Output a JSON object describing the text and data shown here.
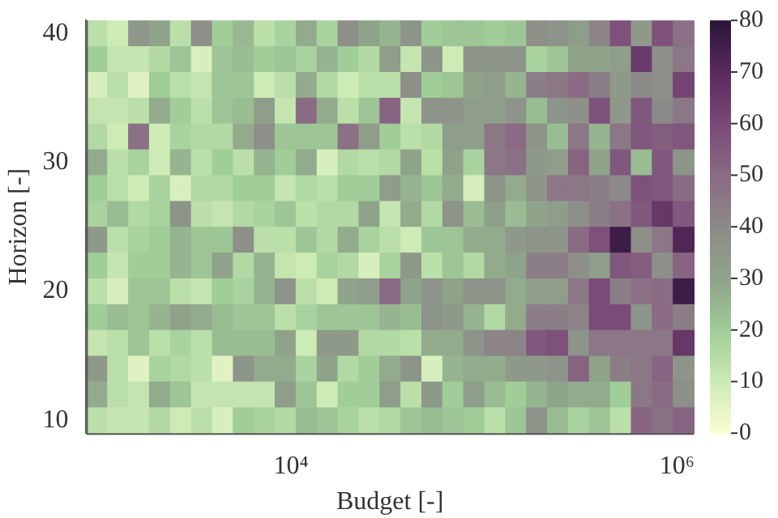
{
  "chart_data": {
    "type": "heatmap",
    "xlabel": "Budget [-]",
    "ylabel": "Horizon [-]",
    "log": "x",
    "xlim": [
      870,
      1220000
    ],
    "xticks": [
      {
        "value": 10000,
        "label": "10⁴"
      },
      {
        "value": 1000000,
        "label": "10⁶"
      }
    ],
    "ylim": [
      9,
      41
    ],
    "yticks": [
      10,
      20,
      30,
      40
    ],
    "clim": [
      0,
      80
    ],
    "cticks": [
      0,
      10,
      20,
      30,
      40,
      50,
      60,
      70,
      80
    ],
    "grid": false,
    "cells": [
      [
        14,
        10,
        35,
        30,
        14,
        38,
        20,
        25,
        14,
        18,
        28,
        18,
        38,
        30,
        26,
        36,
        20,
        22,
        22,
        20,
        22,
        38,
        36,
        32,
        42,
        58,
        34,
        58,
        48
      ],
      [
        20,
        12,
        12,
        16,
        22,
        8,
        22,
        24,
        20,
        22,
        18,
        26,
        20,
        16,
        32,
        12,
        36,
        10,
        36,
        36,
        36,
        18,
        22,
        30,
        30,
        32,
        65,
        38,
        46
      ],
      [
        8,
        14,
        6,
        20,
        14,
        12,
        22,
        22,
        10,
        14,
        28,
        16,
        10,
        14,
        14,
        38,
        20,
        22,
        30,
        32,
        26,
        44,
        46,
        50,
        44,
        34,
        40,
        38,
        62
      ],
      [
        12,
        12,
        14,
        28,
        20,
        14,
        22,
        24,
        32,
        12,
        50,
        28,
        14,
        22,
        52,
        12,
        36,
        36,
        32,
        32,
        36,
        24,
        36,
        38,
        58,
        34,
        56,
        40,
        46
      ],
      [
        16,
        10,
        48,
        10,
        18,
        16,
        16,
        28,
        38,
        22,
        22,
        22,
        48,
        32,
        20,
        14,
        16,
        32,
        32,
        46,
        50,
        36,
        24,
        46,
        26,
        46,
        56,
        54,
        56
      ],
      [
        28,
        14,
        18,
        10,
        26,
        14,
        20,
        14,
        26,
        20,
        28,
        8,
        16,
        14,
        16,
        30,
        14,
        30,
        18,
        46,
        48,
        34,
        32,
        52,
        30,
        56,
        24,
        56,
        36
      ],
      [
        20,
        14,
        10,
        18,
        8,
        16,
        16,
        20,
        20,
        12,
        16,
        14,
        20,
        20,
        32,
        26,
        22,
        28,
        8,
        36,
        28,
        36,
        46,
        46,
        44,
        40,
        58,
        56,
        50
      ],
      [
        18,
        24,
        16,
        18,
        36,
        14,
        12,
        16,
        18,
        22,
        14,
        16,
        16,
        30,
        12,
        28,
        16,
        36,
        24,
        32,
        24,
        30,
        32,
        38,
        44,
        48,
        56,
        66,
        56
      ],
      [
        34,
        14,
        18,
        20,
        26,
        22,
        22,
        38,
        14,
        14,
        22,
        16,
        28,
        18,
        14,
        10,
        22,
        22,
        28,
        28,
        34,
        36,
        36,
        50,
        58,
        76,
        38,
        46,
        72
      ],
      [
        20,
        12,
        20,
        20,
        26,
        22,
        30,
        16,
        26,
        12,
        10,
        18,
        16,
        8,
        18,
        34,
        14,
        22,
        16,
        28,
        30,
        44,
        44,
        38,
        32,
        56,
        54,
        38,
        52
      ],
      [
        14,
        8,
        22,
        22,
        14,
        12,
        20,
        18,
        26,
        36,
        14,
        10,
        30,
        32,
        50,
        30,
        36,
        30,
        36,
        36,
        28,
        32,
        32,
        46,
        60,
        44,
        48,
        50,
        76
      ],
      [
        20,
        24,
        22,
        26,
        30,
        28,
        24,
        22,
        22,
        14,
        18,
        22,
        22,
        22,
        26,
        24,
        36,
        34,
        26,
        16,
        28,
        44,
        44,
        42,
        60,
        60,
        36,
        50,
        44
      ],
      [
        12,
        14,
        22,
        14,
        18,
        14,
        24,
        24,
        24,
        30,
        10,
        34,
        34,
        16,
        16,
        14,
        28,
        28,
        36,
        42,
        42,
        56,
        58,
        36,
        46,
        46,
        46,
        46,
        66
      ],
      [
        34,
        14,
        6,
        18,
        16,
        14,
        6,
        36,
        28,
        28,
        18,
        30,
        16,
        20,
        28,
        36,
        8,
        26,
        28,
        28,
        34,
        34,
        36,
        52,
        30,
        44,
        46,
        52,
        36
      ],
      [
        28,
        14,
        12,
        28,
        22,
        12,
        12,
        12,
        12,
        32,
        22,
        10,
        20,
        20,
        32,
        14,
        34,
        20,
        32,
        24,
        20,
        26,
        30,
        28,
        28,
        20,
        46,
        50,
        38
      ],
      [
        14,
        12,
        12,
        16,
        10,
        14,
        8,
        20,
        18,
        16,
        24,
        22,
        18,
        14,
        16,
        22,
        24,
        22,
        20,
        14,
        22,
        36,
        24,
        18,
        22,
        14,
        52,
        48,
        52
      ]
    ]
  }
}
